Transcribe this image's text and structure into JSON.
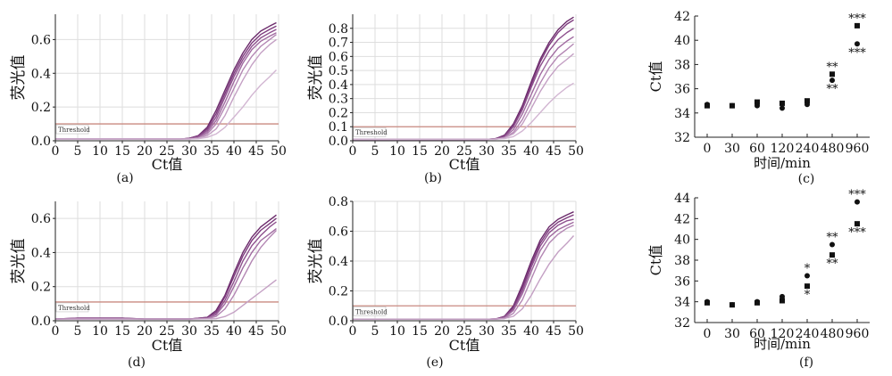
{
  "threshold_label": "Threshold",
  "chart_data": [
    {
      "type": "line",
      "panel": "(a)",
      "xlabel": "Ct值",
      "ylabel": "荧光值",
      "xlim": [
        0,
        50
      ],
      "ylim": [
        0,
        0.75
      ],
      "xticks": [
        0,
        5,
        10,
        15,
        20,
        25,
        30,
        35,
        40,
        45,
        50
      ],
      "yticks": [
        "0.0",
        "0.2",
        "0.4",
        "0.6"
      ],
      "grid": true,
      "threshold": 0.1,
      "series": [
        {
          "x": [
            0,
            10,
            20,
            28,
            30,
            32,
            34,
            36,
            38,
            40,
            42,
            44,
            46,
            48,
            49.5
          ],
          "y": [
            0.01,
            0.01,
            0.01,
            0.01,
            0.015,
            0.03,
            0.08,
            0.18,
            0.3,
            0.42,
            0.52,
            0.6,
            0.65,
            0.68,
            0.7
          ]
        },
        {
          "x": [
            0,
            10,
            20,
            28,
            30,
            32,
            34,
            36,
            38,
            40,
            42,
            44,
            46,
            48,
            49.5
          ],
          "y": [
            0.01,
            0.01,
            0.01,
            0.01,
            0.015,
            0.03,
            0.07,
            0.16,
            0.28,
            0.4,
            0.5,
            0.58,
            0.63,
            0.66,
            0.68
          ]
        },
        {
          "x": [
            0,
            10,
            20,
            28,
            30,
            32,
            34,
            36,
            38,
            40,
            42,
            44,
            46,
            48,
            49.5
          ],
          "y": [
            0.01,
            0.01,
            0.01,
            0.01,
            0.012,
            0.025,
            0.06,
            0.14,
            0.26,
            0.38,
            0.48,
            0.56,
            0.61,
            0.64,
            0.66
          ]
        },
        {
          "x": [
            0,
            10,
            20,
            28,
            30,
            32,
            34,
            36,
            38,
            40,
            42,
            44,
            46,
            48,
            49.5
          ],
          "y": [
            0.01,
            0.01,
            0.01,
            0.01,
            0.012,
            0.02,
            0.05,
            0.12,
            0.23,
            0.35,
            0.46,
            0.54,
            0.59,
            0.62,
            0.64
          ]
        },
        {
          "x": [
            0,
            10,
            20,
            28,
            30,
            32,
            34,
            36,
            38,
            40,
            42,
            44,
            46,
            48,
            49.5
          ],
          "y": [
            0.01,
            0.01,
            0.01,
            0.01,
            0.01,
            0.015,
            0.04,
            0.1,
            0.2,
            0.31,
            0.42,
            0.5,
            0.56,
            0.6,
            0.63
          ]
        },
        {
          "x": [
            0,
            10,
            20,
            30,
            32,
            34,
            36,
            38,
            40,
            42,
            44,
            46,
            48,
            49.5
          ],
          "y": [
            0.01,
            0.01,
            0.01,
            0.01,
            0.015,
            0.03,
            0.07,
            0.15,
            0.26,
            0.36,
            0.45,
            0.52,
            0.57,
            0.6
          ]
        },
        {
          "x": [
            0,
            10,
            20,
            30,
            32,
            34,
            36,
            38,
            40,
            42,
            44,
            46,
            48,
            49.5
          ],
          "y": [
            0.01,
            0.01,
            0.01,
            0.01,
            0.012,
            0.02,
            0.04,
            0.08,
            0.14,
            0.2,
            0.27,
            0.33,
            0.38,
            0.42
          ]
        }
      ]
    },
    {
      "type": "line",
      "panel": "(b)",
      "xlabel": "Ct值",
      "ylabel": "荧光值",
      "xlim": [
        0,
        50
      ],
      "ylim": [
        0,
        0.9
      ],
      "xticks": [
        0,
        5,
        10,
        15,
        20,
        25,
        30,
        35,
        40,
        45,
        50
      ],
      "yticks": [
        "0.0",
        "0.1",
        "0.2",
        "0.3",
        "0.4",
        "0.5",
        "0.6",
        "0.7",
        "0.8"
      ],
      "grid": true,
      "threshold": 0.1,
      "series": [
        {
          "x": [
            0,
            10,
            20,
            30,
            32,
            34,
            36,
            38,
            40,
            42,
            44,
            46,
            48,
            49.5
          ],
          "y": [
            0.01,
            0.01,
            0.01,
            0.01,
            0.015,
            0.04,
            0.12,
            0.25,
            0.42,
            0.58,
            0.7,
            0.79,
            0.85,
            0.88
          ]
        },
        {
          "x": [
            0,
            10,
            20,
            30,
            32,
            34,
            36,
            38,
            40,
            42,
            44,
            46,
            48,
            49.5
          ],
          "y": [
            0.01,
            0.01,
            0.01,
            0.01,
            0.015,
            0.035,
            0.11,
            0.23,
            0.4,
            0.56,
            0.68,
            0.77,
            0.83,
            0.86
          ]
        },
        {
          "x": [
            0,
            10,
            20,
            30,
            32,
            34,
            36,
            38,
            40,
            42,
            44,
            46,
            48,
            49.5
          ],
          "y": [
            0.01,
            0.01,
            0.01,
            0.01,
            0.012,
            0.03,
            0.1,
            0.22,
            0.38,
            0.53,
            0.64,
            0.72,
            0.77,
            0.8
          ]
        },
        {
          "x": [
            0,
            10,
            20,
            30,
            32,
            34,
            36,
            38,
            40,
            42,
            44,
            46,
            48,
            49.5
          ],
          "y": [
            0.01,
            0.01,
            0.01,
            0.01,
            0.012,
            0.025,
            0.08,
            0.19,
            0.33,
            0.47,
            0.58,
            0.66,
            0.71,
            0.74
          ]
        },
        {
          "x": [
            0,
            10,
            20,
            30,
            32,
            34,
            36,
            38,
            40,
            42,
            44,
            46,
            48,
            49.5
          ],
          "y": [
            0.01,
            0.01,
            0.01,
            0.01,
            0.012,
            0.02,
            0.06,
            0.15,
            0.28,
            0.41,
            0.52,
            0.6,
            0.65,
            0.69
          ]
        },
        {
          "x": [
            0,
            10,
            20,
            30,
            32,
            34,
            36,
            38,
            40,
            42,
            44,
            46,
            48,
            49.5
          ],
          "y": [
            0.01,
            0.01,
            0.01,
            0.01,
            0.01,
            0.02,
            0.05,
            0.12,
            0.23,
            0.35,
            0.45,
            0.53,
            0.58,
            0.62
          ]
        },
        {
          "x": [
            0,
            10,
            20,
            30,
            34,
            36,
            38,
            40,
            42,
            44,
            46,
            48,
            49.5
          ],
          "y": [
            0.01,
            0.01,
            0.01,
            0.01,
            0.015,
            0.03,
            0.07,
            0.13,
            0.2,
            0.27,
            0.33,
            0.38,
            0.41
          ]
        }
      ]
    },
    {
      "type": "scatter",
      "panel": "(c)",
      "xlabel": "时间/min",
      "ylabel": "Ct值",
      "categories": [
        "0",
        "30",
        "60",
        "120",
        "240",
        "480",
        "960"
      ],
      "ylim": [
        32,
        42
      ],
      "yticks": [
        32,
        34,
        36,
        38,
        40,
        42
      ],
      "grid": false,
      "series": [
        {
          "marker": "circle",
          "values": [
            34.7,
            34.6,
            34.6,
            34.4,
            34.7,
            36.7,
            39.7
          ],
          "annotations": [
            "",
            "",
            "",
            "",
            "",
            "**",
            "***"
          ]
        },
        {
          "marker": "square",
          "values": [
            34.6,
            34.6,
            34.9,
            34.8,
            35.0,
            37.2,
            41.2
          ],
          "annotations": [
            "",
            "",
            "",
            "",
            "",
            "**",
            "***"
          ]
        }
      ]
    },
    {
      "type": "line",
      "panel": "(d)",
      "xlabel": "Ct值",
      "ylabel": "荧光值",
      "xlim": [
        0,
        50
      ],
      "ylim": [
        0,
        0.7
      ],
      "xticks": [
        0,
        5,
        10,
        15,
        20,
        25,
        30,
        35,
        40,
        45,
        50
      ],
      "yticks": [
        "0.0",
        "0.2",
        "0.4",
        "0.6"
      ],
      "grid": true,
      "threshold": 0.11,
      "series": [
        {
          "x": [
            0,
            5,
            10,
            15,
            20,
            30,
            34,
            36,
            38,
            40,
            42,
            44,
            46,
            48,
            49.5
          ],
          "y": [
            0.01,
            0.015,
            0.015,
            0.015,
            0.01,
            0.01,
            0.02,
            0.06,
            0.15,
            0.28,
            0.4,
            0.49,
            0.55,
            0.59,
            0.62
          ]
        },
        {
          "x": [
            0,
            5,
            10,
            15,
            20,
            30,
            34,
            36,
            38,
            40,
            42,
            44,
            46,
            48,
            49.5
          ],
          "y": [
            0.01,
            0.015,
            0.015,
            0.015,
            0.01,
            0.01,
            0.02,
            0.05,
            0.14,
            0.26,
            0.38,
            0.47,
            0.53,
            0.57,
            0.6
          ]
        },
        {
          "x": [
            0,
            5,
            10,
            15,
            20,
            30,
            34,
            36,
            38,
            40,
            42,
            44,
            46,
            48,
            49.5
          ],
          "y": [
            0.01,
            0.012,
            0.012,
            0.012,
            0.01,
            0.01,
            0.015,
            0.04,
            0.12,
            0.23,
            0.35,
            0.44,
            0.5,
            0.55,
            0.58
          ]
        },
        {
          "x": [
            0,
            5,
            10,
            15,
            20,
            30,
            34,
            36,
            38,
            40,
            42,
            44,
            46,
            48,
            49.5
          ],
          "y": [
            0.01,
            0.012,
            0.012,
            0.012,
            0.01,
            0.01,
            0.015,
            0.035,
            0.1,
            0.2,
            0.31,
            0.4,
            0.47,
            0.51,
            0.54
          ]
        },
        {
          "x": [
            0,
            5,
            10,
            15,
            20,
            30,
            34,
            36,
            38,
            40,
            42,
            44,
            46,
            48,
            49.5
          ],
          "y": [
            0.01,
            0.01,
            0.01,
            0.01,
            0.01,
            0.01,
            0.012,
            0.025,
            0.07,
            0.15,
            0.25,
            0.35,
            0.43,
            0.49,
            0.53
          ]
        },
        {
          "x": [
            0,
            10,
            20,
            30,
            36,
            38,
            40,
            42,
            44,
            46,
            48,
            49.5
          ],
          "y": [
            0.01,
            0.01,
            0.01,
            0.01,
            0.012,
            0.025,
            0.05,
            0.09,
            0.13,
            0.17,
            0.21,
            0.24
          ]
        }
      ]
    },
    {
      "type": "line",
      "panel": "(e)",
      "xlabel": "Ct值",
      "ylabel": "荧光值",
      "xlim": [
        0,
        50
      ],
      "ylim": [
        0,
        0.8
      ],
      "xticks": [
        0,
        5,
        10,
        15,
        20,
        25,
        30,
        35,
        40,
        45,
        50
      ],
      "yticks": [
        "0.0",
        "0.2",
        "0.4",
        "0.6",
        "0.8"
      ],
      "grid": true,
      "threshold": 0.1,
      "series": [
        {
          "x": [
            0,
            10,
            20,
            30,
            32,
            34,
            36,
            38,
            40,
            42,
            44,
            46,
            48,
            49.5
          ],
          "y": [
            0.01,
            0.01,
            0.01,
            0.01,
            0.012,
            0.03,
            0.1,
            0.24,
            0.4,
            0.54,
            0.63,
            0.68,
            0.71,
            0.73
          ]
        },
        {
          "x": [
            0,
            10,
            20,
            30,
            32,
            34,
            36,
            38,
            40,
            42,
            44,
            46,
            48,
            49.5
          ],
          "y": [
            0.01,
            0.01,
            0.01,
            0.01,
            0.012,
            0.028,
            0.09,
            0.22,
            0.38,
            0.52,
            0.61,
            0.66,
            0.69,
            0.71
          ]
        },
        {
          "x": [
            0,
            10,
            20,
            30,
            32,
            34,
            36,
            38,
            40,
            42,
            44,
            46,
            48,
            49.5
          ],
          "y": [
            0.01,
            0.01,
            0.01,
            0.01,
            0.012,
            0.025,
            0.08,
            0.2,
            0.36,
            0.5,
            0.59,
            0.64,
            0.67,
            0.68
          ]
        },
        {
          "x": [
            0,
            10,
            20,
            30,
            32,
            34,
            36,
            38,
            40,
            42,
            44,
            46,
            48,
            49.5
          ],
          "y": [
            0.01,
            0.01,
            0.01,
            0.01,
            0.01,
            0.02,
            0.07,
            0.18,
            0.33,
            0.47,
            0.56,
            0.61,
            0.64,
            0.66
          ]
        },
        {
          "x": [
            0,
            10,
            20,
            30,
            32,
            34,
            36,
            38,
            40,
            42,
            44,
            46,
            48,
            49.5
          ],
          "y": [
            0.01,
            0.01,
            0.01,
            0.01,
            0.01,
            0.015,
            0.05,
            0.14,
            0.28,
            0.42,
            0.52,
            0.58,
            0.62,
            0.64
          ]
        },
        {
          "x": [
            0,
            10,
            20,
            30,
            34,
            36,
            38,
            40,
            42,
            44,
            46,
            48,
            49.5
          ],
          "y": [
            0.01,
            0.01,
            0.01,
            0.01,
            0.015,
            0.03,
            0.08,
            0.17,
            0.28,
            0.38,
            0.46,
            0.52,
            0.57
          ]
        }
      ]
    },
    {
      "type": "scatter",
      "panel": "(f)",
      "xlabel": "时间/min",
      "ylabel": "Ct值",
      "categories": [
        "0",
        "30",
        "60",
        "120",
        "240",
        "480",
        "960"
      ],
      "ylim": [
        32,
        44
      ],
      "yticks": [
        32,
        34,
        36,
        38,
        40,
        42,
        44
      ],
      "grid": false,
      "series": [
        {
          "marker": "circle",
          "values": [
            34.0,
            33.7,
            34.0,
            34.5,
            36.5,
            39.5,
            43.6
          ],
          "annotations": [
            "",
            "",
            "",
            "",
            "*",
            "**",
            "***"
          ]
        },
        {
          "marker": "square",
          "values": [
            33.9,
            33.7,
            33.9,
            34.1,
            35.5,
            38.5,
            41.5
          ],
          "annotations": [
            "",
            "",
            "",
            "",
            "*",
            "**",
            "***"
          ]
        }
      ]
    }
  ]
}
